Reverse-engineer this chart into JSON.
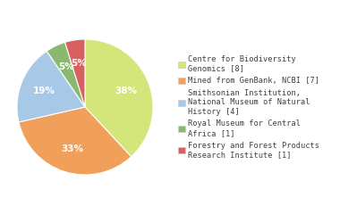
{
  "labels": [
    "Centre for Biodiversity\nGenomics [8]",
    "Mined from GenBank, NCBI [7]",
    "Smithsonian Institution,\nNational Museum of Natural\nHistory [4]",
    "Royal Museum for Central\nAfrica [1]",
    "Forestry and Forest Products\nResearch Institute [1]"
  ],
  "values": [
    8,
    7,
    4,
    1,
    1
  ],
  "colors": [
    "#d4e57a",
    "#f0a05a",
    "#a8c8e8",
    "#8ab870",
    "#d96060"
  ],
  "background_color": "#ffffff",
  "text_color": "#404040"
}
